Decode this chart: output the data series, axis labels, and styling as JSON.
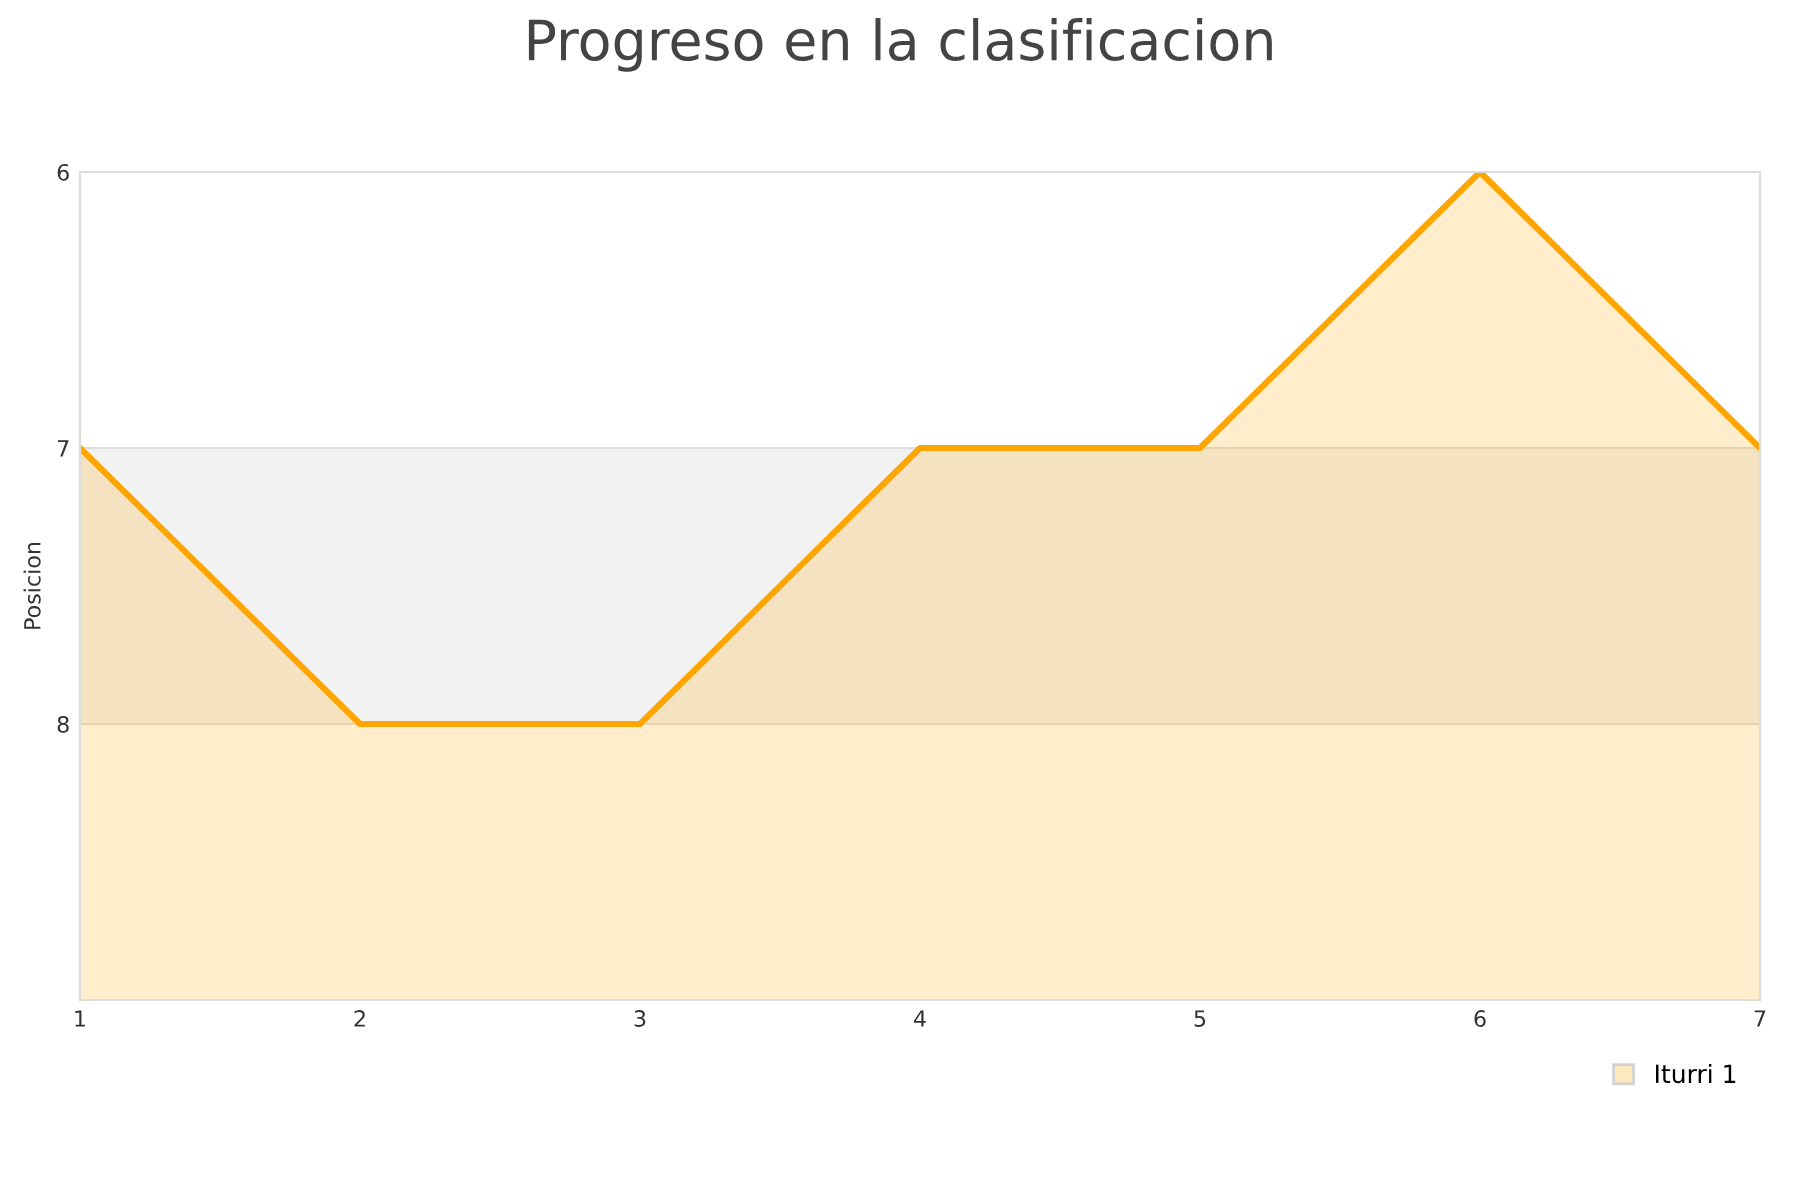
{
  "chart_data": {
    "type": "area",
    "title": "Progreso en la clasificacion",
    "ylabel": "Posicion",
    "x": [
      1,
      2,
      3,
      4,
      5,
      6,
      7
    ],
    "series": [
      {
        "name": "Iturri 1",
        "color": "#ffa500",
        "values": [
          7,
          8,
          8,
          7,
          7,
          6,
          7
        ]
      }
    ],
    "xlim": [
      1,
      7
    ],
    "xticks": [
      1,
      2,
      3,
      4,
      5,
      6,
      7
    ],
    "ylim": [
      9,
      6
    ],
    "yticks": [
      6,
      7,
      8
    ],
    "bands": [
      {
        "axis": "y",
        "from": 7,
        "to": 8,
        "color": "#f2f2f2"
      }
    ],
    "grid": "y",
    "legend": "bottom right",
    "marker": "none",
    "line_style": "solid"
  }
}
